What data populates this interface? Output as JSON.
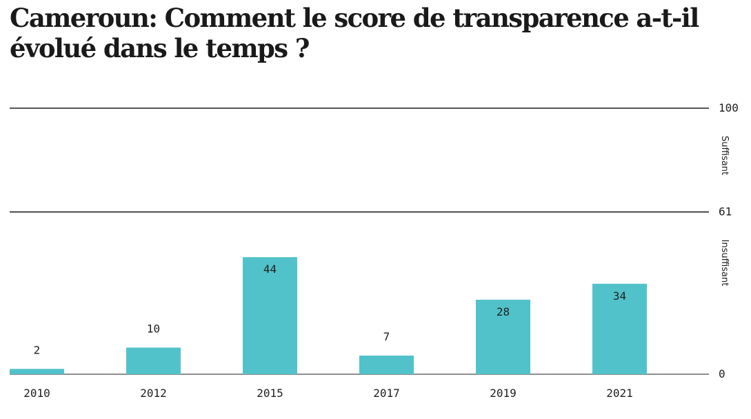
{
  "title": "Cameroun: Comment le score de transparence a-t-il évolué dans le temps ?",
  "chart_data": {
    "type": "bar",
    "categories": [
      "2010",
      "2012",
      "2015",
      "2017",
      "2019",
      "2021"
    ],
    "values": [
      2,
      10,
      44,
      7,
      28,
      34
    ],
    "ylim": [
      0,
      100
    ],
    "y_ticks": [
      0,
      61,
      100
    ],
    "bands": [
      {
        "label": "Suffisant",
        "from": 61,
        "to": 100
      },
      {
        "label": "Insuffisant",
        "from": 0,
        "to": 61
      }
    ],
    "colors": {
      "bar": "#52c2ca",
      "rule": "#1e1e1e",
      "text": "#1e1e1e"
    },
    "grid": false
  }
}
